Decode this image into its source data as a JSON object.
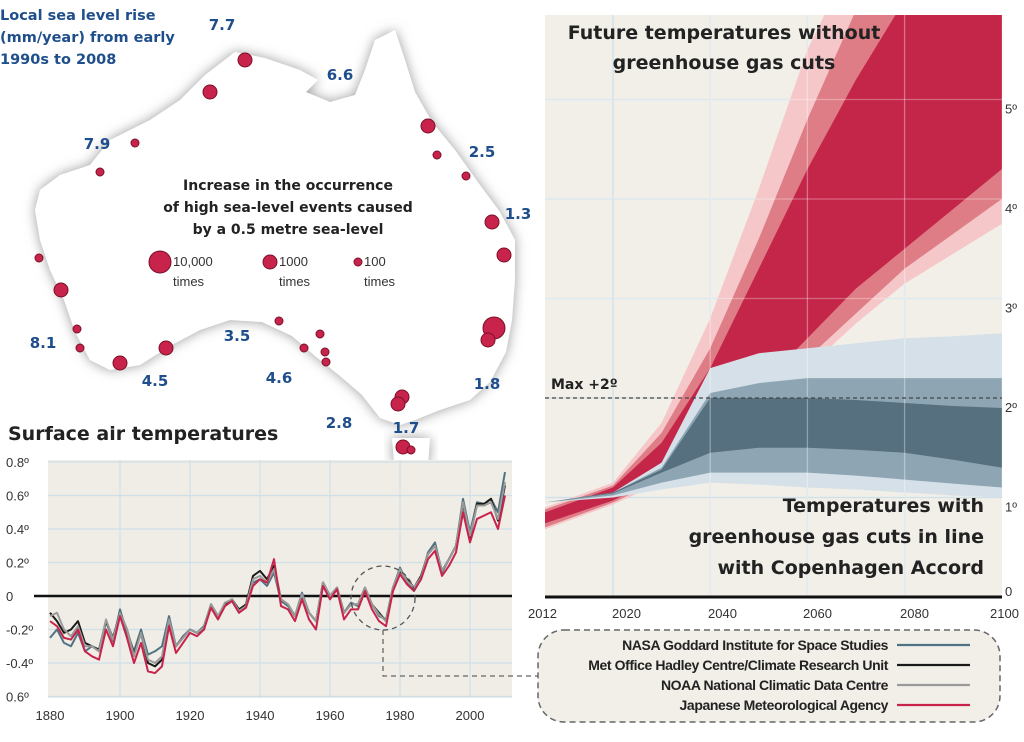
{
  "map": {
    "title_lines": [
      "Local sea level rise",
      "(mm/year) from early",
      "1990s to 2008"
    ],
    "legend_lines": [
      "Increase in the occurrence",
      "of high sea-level events caused",
      "by a 0.5 metre sea-level"
    ],
    "size_legend": [
      {
        "value": "10,000",
        "unit": "times"
      },
      {
        "value": "1000",
        "unit": "times"
      },
      {
        "value": "100",
        "unit": "times"
      }
    ],
    "rise_labels": [
      "7.7",
      "6.6",
      "7.9",
      "2.5",
      "1.3",
      "8.1",
      "3.5",
      "4.5",
      "4.6",
      "1.8",
      "2.8",
      "1.7",
      "3.5"
    ],
    "land_color": "#ffffff",
    "dot_color": "#c8234a"
  },
  "chart_data": [
    {
      "type": "line",
      "title": "Surface air temperatures",
      "x_ticks": [
        "1880",
        "1900",
        "1920",
        "1940",
        "1960",
        "1980",
        "2000"
      ],
      "y_ticks": [
        "0.8º",
        "0.6º",
        "0.4º",
        "0.2º",
        "0",
        "-0.2º",
        "-0.4º",
        "0.6º"
      ],
      "xlim": [
        1880,
        2010
      ],
      "ylim": [
        -0.6,
        0.8
      ],
      "grid": true,
      "legend_placement": "bottom-right",
      "x": [
        1880,
        1882,
        1884,
        1886,
        1888,
        1890,
        1892,
        1894,
        1896,
        1898,
        1900,
        1902,
        1904,
        1906,
        1908,
        1910,
        1912,
        1914,
        1916,
        1918,
        1920,
        1922,
        1924,
        1926,
        1928,
        1930,
        1932,
        1934,
        1936,
        1938,
        1940,
        1942,
        1944,
        1946,
        1948,
        1950,
        1952,
        1954,
        1956,
        1958,
        1960,
        1962,
        1964,
        1966,
        1968,
        1970,
        1972,
        1974,
        1976,
        1978,
        1980,
        1982,
        1984,
        1986,
        1988,
        1990,
        1992,
        1994,
        1996,
        1998,
        2000,
        2002,
        2004,
        2006,
        2008,
        2010
      ],
      "series": [
        {
          "name": "NASA Goddard Institute for Space Studies",
          "color": "#4f7384",
          "values": [
            -0.25,
            -0.2,
            -0.28,
            -0.3,
            -0.22,
            -0.33,
            -0.3,
            -0.33,
            -0.15,
            -0.27,
            -0.08,
            -0.22,
            -0.33,
            -0.2,
            -0.35,
            -0.33,
            -0.3,
            -0.12,
            -0.3,
            -0.24,
            -0.2,
            -0.22,
            -0.18,
            -0.05,
            -0.13,
            -0.04,
            -0.03,
            -0.1,
            -0.06,
            0.08,
            0.1,
            0.06,
            0.14,
            -0.03,
            -0.06,
            -0.12,
            0.02,
            -0.1,
            -0.15,
            0.08,
            0.0,
            0.05,
            -0.1,
            -0.04,
            -0.06,
            0.04,
            -0.05,
            -0.12,
            -0.14,
            0.05,
            0.17,
            0.08,
            0.04,
            0.1,
            0.26,
            0.32,
            0.14,
            0.22,
            0.3,
            0.58,
            0.38,
            0.56,
            0.55,
            0.58,
            0.5,
            0.74
          ]
        },
        {
          "name": "Met Office Hadley Centre/Climate Research Unit",
          "color": "#1a1a1a",
          "values": [
            -0.1,
            -0.15,
            -0.22,
            -0.2,
            -0.15,
            -0.28,
            -0.3,
            -0.32,
            -0.15,
            -0.25,
            -0.1,
            -0.2,
            -0.35,
            -0.22,
            -0.4,
            -0.42,
            -0.38,
            -0.15,
            -0.3,
            -0.25,
            -0.2,
            -0.22,
            -0.2,
            -0.05,
            -0.12,
            -0.05,
            -0.02,
            -0.08,
            -0.05,
            0.12,
            0.15,
            0.1,
            0.18,
            -0.02,
            -0.05,
            -0.12,
            0.0,
            -0.1,
            -0.15,
            0.08,
            0.0,
            0.05,
            -0.1,
            -0.05,
            -0.05,
            0.05,
            -0.05,
            -0.1,
            -0.15,
            0.05,
            0.15,
            0.1,
            0.05,
            0.12,
            0.25,
            0.3,
            0.15,
            0.22,
            0.3,
            0.55,
            0.35,
            0.55,
            0.55,
            0.58,
            0.45,
            0.66
          ]
        },
        {
          "name": "NOAA National Climatic Data Centre",
          "color": "#9a9a9a",
          "values": [
            -0.12,
            -0.1,
            -0.2,
            -0.24,
            -0.18,
            -0.3,
            -0.3,
            -0.33,
            -0.14,
            -0.26,
            -0.1,
            -0.2,
            -0.36,
            -0.22,
            -0.38,
            -0.4,
            -0.36,
            -0.14,
            -0.3,
            -0.25,
            -0.2,
            -0.22,
            -0.19,
            -0.05,
            -0.12,
            -0.04,
            -0.02,
            -0.09,
            -0.06,
            0.1,
            0.12,
            0.08,
            0.16,
            -0.02,
            -0.05,
            -0.12,
            0.01,
            -0.1,
            -0.15,
            0.08,
            0.0,
            0.05,
            -0.1,
            -0.05,
            -0.05,
            0.05,
            -0.05,
            -0.11,
            -0.15,
            0.05,
            0.16,
            0.09,
            0.05,
            0.11,
            0.25,
            0.3,
            0.15,
            0.22,
            0.3,
            0.56,
            0.36,
            0.54,
            0.54,
            0.56,
            0.46,
            0.68
          ]
        },
        {
          "name": "Japanese Meteorological Agency",
          "color": "#c8234a",
          "values": [
            -0.15,
            -0.18,
            -0.25,
            -0.26,
            -0.2,
            -0.33,
            -0.36,
            -0.38,
            -0.2,
            -0.3,
            -0.12,
            -0.25,
            -0.4,
            -0.28,
            -0.45,
            -0.46,
            -0.42,
            -0.18,
            -0.34,
            -0.28,
            -0.22,
            -0.24,
            -0.2,
            -0.07,
            -0.14,
            -0.06,
            -0.03,
            -0.1,
            -0.07,
            0.06,
            0.1,
            0.08,
            0.22,
            -0.06,
            -0.08,
            -0.15,
            -0.02,
            -0.14,
            -0.2,
            0.06,
            -0.02,
            0.04,
            -0.14,
            -0.08,
            -0.08,
            0.03,
            -0.08,
            -0.15,
            -0.18,
            0.03,
            0.13,
            0.07,
            0.03,
            0.1,
            0.22,
            0.27,
            0.12,
            0.18,
            0.26,
            0.5,
            0.32,
            0.46,
            0.48,
            0.5,
            0.4,
            0.6
          ]
        }
      ]
    },
    {
      "type": "area",
      "x_ticks": [
        "2012",
        "2020",
        "2040",
        "2060",
        "2080",
        "2100"
      ],
      "y_ticks": [
        "0",
        "1º",
        "2º",
        "3º",
        "4º",
        "5º"
      ],
      "xlim": [
        2012,
        2100
      ],
      "ylim": [
        0,
        5.85
      ],
      "grid": true,
      "annotations": {
        "upper_label": [
          "Future temperatures without",
          "greenhouse gas cuts"
        ],
        "lower_label": [
          "Temperatures with",
          "greenhouse gas cuts in line",
          "with Copenhagen Accord"
        ],
        "threshold_label": "Max +2º",
        "threshold_value": 2
      },
      "x": [
        2012,
        2020,
        2030,
        2040,
        2050,
        2060,
        2070,
        2080,
        2090,
        2100
      ],
      "bands": [
        {
          "group": "without cuts",
          "level": "outer",
          "color": "#f5c7c9",
          "lower": [
            0.68,
            0.93,
            1.15,
            1.45,
            1.85,
            2.3,
            2.75,
            3.15,
            3.45,
            3.75
          ],
          "upper": [
            0.9,
            1.15,
            1.75,
            2.8,
            4.1,
            5.5,
            6.5,
            7,
            7,
            7
          ]
        },
        {
          "group": "without cuts",
          "level": "middle",
          "color": "#de7d86",
          "lower": [
            0.7,
            0.95,
            1.18,
            1.5,
            1.95,
            2.4,
            2.85,
            3.3,
            3.65,
            4.0
          ],
          "upper": [
            0.88,
            1.12,
            1.65,
            2.5,
            3.6,
            4.8,
            5.9,
            6.5,
            7,
            7
          ]
        },
        {
          "group": "without cuts",
          "level": "core",
          "color": "#c4264a",
          "lower": [
            0.74,
            0.97,
            1.22,
            1.6,
            2.1,
            2.6,
            3.1,
            3.5,
            3.9,
            4.3
          ],
          "upper": [
            0.85,
            1.1,
            1.55,
            2.3,
            3.3,
            4.3,
            5.2,
            6,
            6.5,
            7
          ]
        },
        {
          "group": "with cuts",
          "level": "outer",
          "color": "#d6e0e8",
          "lower": [
            0.95,
            1.0,
            1.08,
            1.15,
            1.13,
            1.1,
            1.08,
            1.05,
            1.02,
            1.0
          ],
          "upper": [
            0.95,
            1.05,
            1.35,
            2.3,
            2.45,
            2.5,
            2.55,
            2.6,
            2.62,
            2.65
          ]
        },
        {
          "group": "with cuts",
          "level": "middle",
          "color": "#8ea6b4",
          "lower": [
            0.95,
            1.02,
            1.15,
            1.25,
            1.25,
            1.25,
            1.22,
            1.18,
            1.14,
            1.1
          ],
          "upper": [
            0.95,
            1.05,
            1.3,
            2.05,
            2.15,
            2.2,
            2.2,
            2.2,
            2.2,
            2.2
          ]
        },
        {
          "group": "with cuts",
          "level": "core",
          "color": "#56707f",
          "lower": [
            0.95,
            1.04,
            1.25,
            1.45,
            1.5,
            1.5,
            1.48,
            1.45,
            1.38,
            1.3
          ],
          "upper": [
            0.95,
            1.05,
            1.28,
            2.0,
            2.0,
            2.0,
            1.98,
            1.95,
            1.92,
            1.9
          ]
        }
      ]
    }
  ]
}
